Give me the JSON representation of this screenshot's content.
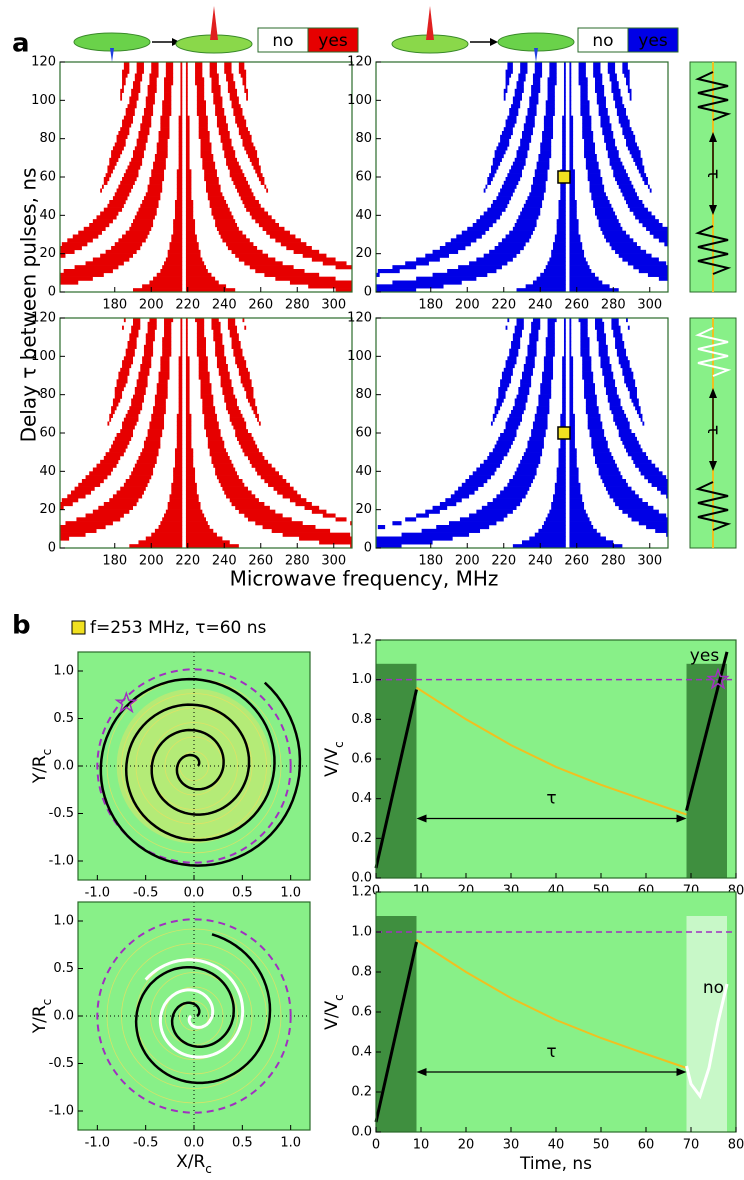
{
  "figure": {
    "panel_a": "a",
    "panel_b": "b",
    "ylabel_a": "Delay τ between pulses, ns",
    "xlabel_a": "Microwave frequency, MHz",
    "legend_a": [
      {
        "no": "no",
        "yes": "yes",
        "color": "#e60000"
      },
      {
        "no": "no",
        "yes": "yes",
        "color": "#0000e6"
      }
    ],
    "legend_b": "f=253 MHz, τ=60 ns",
    "strip_label": "τ"
  },
  "chart_data": [
    {
      "type": "heatmap",
      "color": "#e60000",
      "resonance": 218,
      "xlim": [
        150,
        310
      ],
      "xticks": [
        180,
        200,
        220,
        240,
        260,
        280,
        300
      ],
      "ylim": [
        0,
        120
      ],
      "yticks": [
        0,
        20,
        40,
        60,
        80,
        100,
        120
      ]
    },
    {
      "type": "heatmap",
      "color": "#0000e6",
      "resonance": 255,
      "marker": {
        "x": 253,
        "y": 60
      },
      "xlim": [
        150,
        310
      ],
      "xticks": [
        180,
        200,
        220,
        240,
        260,
        280,
        300
      ],
      "ylim": [
        0,
        120
      ],
      "yticks": [
        0,
        20,
        40,
        60,
        80,
        100,
        120
      ]
    },
    {
      "type": "heatmap",
      "color": "#e60000",
      "resonance": 218,
      "xlim": [
        150,
        310
      ],
      "xticks": [
        180,
        200,
        220,
        240,
        260,
        280,
        300
      ],
      "ylim": [
        0,
        120
      ],
      "yticks": [
        0,
        20,
        40,
        60,
        80,
        100,
        120
      ]
    },
    {
      "type": "heatmap",
      "color": "#0000e6",
      "resonance": 255,
      "marker": {
        "x": 253,
        "y": 60
      },
      "xlim": [
        150,
        310
      ],
      "xticks": [
        180,
        200,
        220,
        240,
        260,
        280,
        300
      ],
      "ylim": [
        0,
        120
      ],
      "yticks": [
        0,
        20,
        40,
        60,
        80,
        100,
        120
      ]
    },
    {
      "type": "spiral",
      "ylabel": "Y/R",
      "ylabel_sub": "c",
      "xlim": [
        -1.2,
        1.2
      ],
      "ylim": [
        -1.2,
        1.2
      ],
      "xticks": [
        {
          "value": -1,
          "label": "-1.0"
        },
        -0.5,
        {
          "value": 0,
          "label": "0.0"
        },
        0.5,
        {
          "value": 1,
          "label": "1.0"
        }
      ],
      "yticks": [
        {
          "value": -1,
          "label": "-1.0"
        },
        -0.5,
        {
          "value": 0,
          "label": "0.0"
        },
        0.5,
        {
          "value": 1,
          "label": "1.0"
        }
      ],
      "dashed_radius": 1.0,
      "star": {
        "x": -0.7,
        "y": 0.66
      }
    },
    {
      "type": "spiral",
      "xlabel": "X/R",
      "xlabel_sub": "c",
      "ylabel": "Y/R",
      "ylabel_sub": "c",
      "xlim": [
        -1.2,
        1.2
      ],
      "ylim": [
        -1.2,
        1.2
      ],
      "xticks": [
        {
          "value": -1,
          "label": "-1.0"
        },
        -0.5,
        {
          "value": 0,
          "label": "0.0"
        },
        0.5,
        {
          "value": 1,
          "label": "1.0"
        }
      ],
      "yticks": [
        {
          "value": -1,
          "label": "-1.0"
        },
        -0.5,
        {
          "value": 0,
          "label": "0.0"
        },
        0.5,
        {
          "value": 1,
          "label": "1.0"
        }
      ],
      "dashed_radius": 1.0
    },
    {
      "type": "time",
      "ylabel": "V/V",
      "ylabel_sub": "c",
      "xlim": [
        0,
        80
      ],
      "xticks": [
        0,
        10,
        20,
        30,
        40,
        50,
        60,
        70,
        80
      ],
      "ylim": [
        0,
        1.2
      ],
      "yticks": [
        {
          "value": 0,
          "label": "0.0"
        },
        0.2,
        0.4,
        0.6,
        0.8,
        {
          "value": 1,
          "label": "1.0"
        },
        1.2
      ],
      "threshold": 1.0,
      "tau_label": "τ",
      "tau_span": [
        9,
        69
      ],
      "tau_level": 0.3,
      "pulses": [
        {
          "x": [
            0,
            9
          ],
          "height": 1.08,
          "color": "#3f8f3f"
        },
        {
          "x": [
            69,
            78
          ],
          "height": 1.08,
          "color": "#3f8f3f"
        }
      ],
      "annotation": {
        "text": "yes",
        "x": 73,
        "y": 1.12
      },
      "star": {
        "x": 76,
        "y": 1.0
      },
      "series": [
        {
          "color": "#000000",
          "x": [
            0,
            9
          ],
          "values": [
            0.05,
            0.95
          ]
        },
        {
          "color": "#f0c020",
          "x": [
            9,
            20,
            30,
            40,
            50,
            60,
            69
          ],
          "values": [
            0.96,
            0.8,
            0.67,
            0.56,
            0.47,
            0.39,
            0.32
          ]
        },
        {
          "color": "#000000",
          "x": [
            69,
            78
          ],
          "values": [
            0.34,
            1.14
          ]
        }
      ]
    },
    {
      "type": "time",
      "xlabel": "Time, ns",
      "ylabel": "V/V",
      "ylabel_sub": "c",
      "xlim": [
        0,
        80
      ],
      "xticks": [
        0,
        10,
        20,
        30,
        40,
        50,
        60,
        70,
        80
      ],
      "ylim": [
        0,
        1.2
      ],
      "yticks": [
        {
          "value": 0,
          "label": "0.0"
        },
        0.2,
        0.4,
        0.6,
        0.8,
        {
          "value": 1,
          "label": "1.0"
        },
        1.2
      ],
      "threshold": 1.0,
      "tau_label": "τ",
      "tau_span": [
        9,
        69
      ],
      "tau_level": 0.3,
      "pulses": [
        {
          "x": [
            0,
            9
          ],
          "height": 1.08,
          "color": "#3f8f3f"
        },
        {
          "x": [
            69,
            78
          ],
          "height": 1.08,
          "color": "#c8f8c8"
        }
      ],
      "annotation": {
        "text": "no",
        "x": 75,
        "y": 0.72
      },
      "series": [
        {
          "color": "#000000",
          "x": [
            0,
            9
          ],
          "values": [
            0.05,
            0.95
          ]
        },
        {
          "color": "#f0c020",
          "x": [
            9,
            20,
            30,
            40,
            50,
            60,
            69
          ],
          "values": [
            0.96,
            0.8,
            0.67,
            0.56,
            0.47,
            0.39,
            0.32
          ]
        },
        {
          "color": "#ffffff",
          "x": [
            69,
            70,
            72,
            74,
            76,
            78
          ],
          "values": [
            0.33,
            0.24,
            0.18,
            0.32,
            0.55,
            0.74
          ]
        }
      ]
    }
  ]
}
